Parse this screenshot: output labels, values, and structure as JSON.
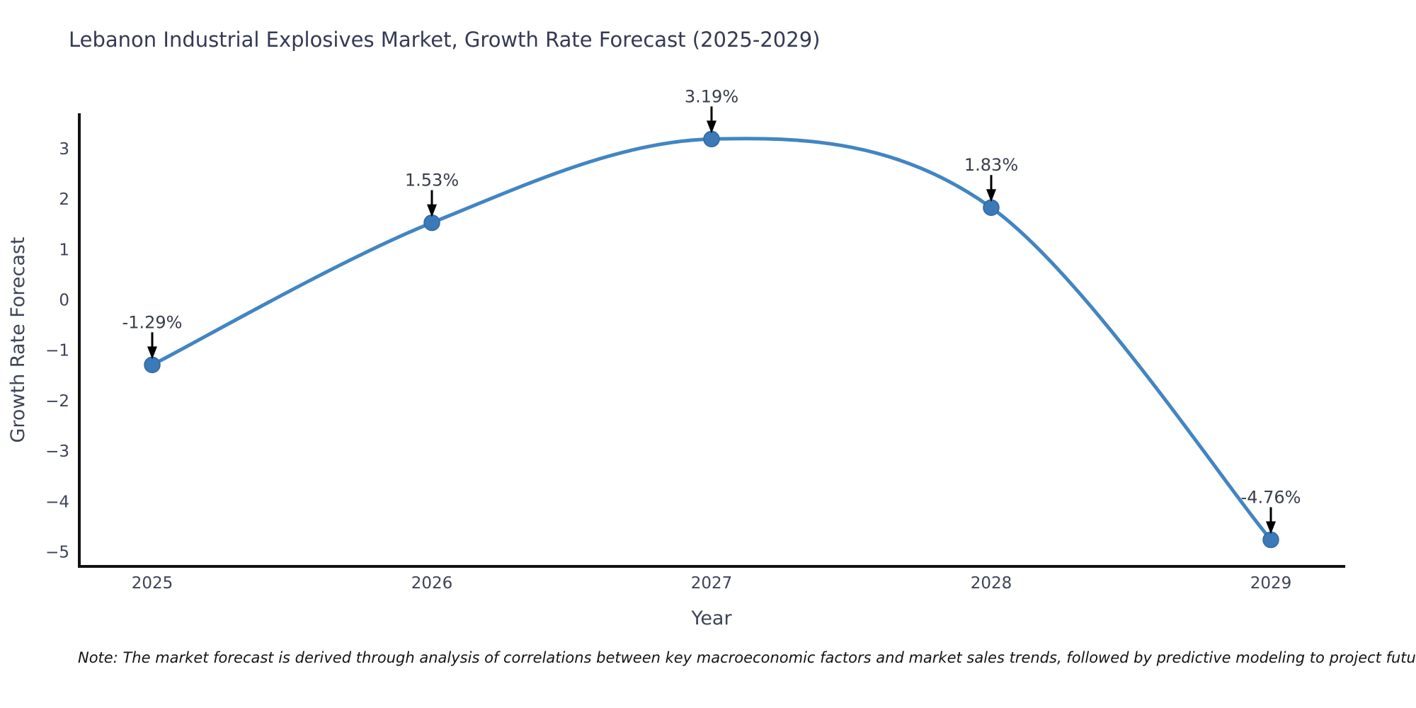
{
  "title": "Lebanon Industrial Explosives Market, Growth Rate Forecast (2025-2029)",
  "note": "Note: The market forecast is derived through analysis of correlations between key macroeconomic factors and market sales trends, followed by predictive modeling to project future sales",
  "chart_data": {
    "type": "line",
    "title": "Lebanon Industrial Explosives Market, Growth Rate Forecast (2025-2029)",
    "xlabel": "Year",
    "ylabel": "Growth Rate Forecast",
    "categories": [
      "2025",
      "2026",
      "2027",
      "2028",
      "2029"
    ],
    "x": [
      2025,
      2026,
      2027,
      2028,
      2029
    ],
    "values": [
      -1.29,
      1.53,
      3.19,
      1.83,
      -4.76
    ],
    "point_labels": [
      "-1.29%",
      "1.53%",
      "3.19%",
      "1.83%",
      "-4.76%"
    ],
    "y_tick_values": [
      3,
      2,
      1,
      0,
      -1,
      -2,
      -3,
      -4,
      -5
    ],
    "y_tick_labels": [
      "3",
      "2",
      "1",
      "0",
      "−1",
      "−2",
      "−3",
      "−4",
      "−5"
    ],
    "x_tick_labels": [
      "2025",
      "2026",
      "2027",
      "2028",
      "2029"
    ],
    "ylim": [
      -5.3,
      3.7
    ],
    "grid": false,
    "legend": false,
    "line_shape": "spline",
    "annotation_style": "value label with down arrow to marker",
    "colors": {
      "line": "#4285c2",
      "marker": "#3b79b8",
      "marker_edge": "#33699f",
      "arrow": "#000000",
      "annotation_text": "#383d4c",
      "tick_text": "#3e4458",
      "axis": "#111111"
    }
  }
}
